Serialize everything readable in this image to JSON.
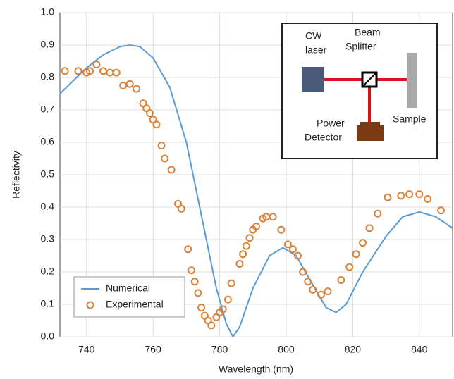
{
  "chart_data": {
    "type": "line",
    "xlabel": "Wavelength (nm)",
    "ylabel": "Reflectivity",
    "xlim": [
      732,
      850
    ],
    "ylim": [
      0,
      1
    ],
    "xticks": [
      740,
      760,
      780,
      800,
      820,
      840
    ],
    "yticks": [
      {
        "value": 0,
        "label": "0.0"
      },
      0.1,
      0.2,
      0.3,
      0.4,
      0.5,
      0.6,
      0.7,
      0.8,
      0.9,
      {
        "value": 1,
        "label": "1.0"
      }
    ],
    "grid": true,
    "legend": "lower left",
    "series": [
      {
        "name": "Numerical",
        "color": "#5b9bd5",
        "mode": "line",
        "x": [
          732,
          736,
          740,
          745,
          750,
          753,
          756,
          760,
          765,
          770,
          775,
          779,
          782,
          784,
          786,
          790,
          795,
          799,
          803,
          808,
          812,
          815,
          818,
          823,
          830,
          835,
          840,
          845,
          850
        ],
        "values": [
          0.75,
          0.79,
          0.83,
          0.87,
          0.895,
          0.9,
          0.895,
          0.86,
          0.77,
          0.6,
          0.35,
          0.15,
          0.04,
          0.0,
          0.03,
          0.15,
          0.25,
          0.275,
          0.25,
          0.16,
          0.09,
          0.075,
          0.1,
          0.2,
          0.31,
          0.37,
          0.385,
          0.37,
          0.335
        ]
      },
      {
        "name": "Experimental",
        "color": "#d9823b",
        "mode": "markers",
        "x": [
          733.5,
          737.5,
          740,
          741,
          743,
          745,
          747,
          749,
          751,
          753,
          755,
          757,
          758,
          759,
          760,
          761,
          762.5,
          763.5,
          765.5,
          767.5,
          768.5,
          770.5,
          771.5,
          772.5,
          773.5,
          774.5,
          775.5,
          776.5,
          777.5,
          779,
          780,
          781,
          782.5,
          783.5,
          786,
          787,
          788,
          789,
          790,
          791,
          793,
          794,
          796,
          798.5,
          800.5,
          802,
          803.5,
          805,
          806.5,
          808,
          810.5,
          812.5,
          816.5,
          819,
          821,
          823,
          825,
          827.5,
          830.5,
          834.5,
          837,
          840,
          842.5,
          846.5
        ],
        "values": [
          0.82,
          0.82,
          0.815,
          0.82,
          0.84,
          0.82,
          0.815,
          0.815,
          0.775,
          0.78,
          0.765,
          0.72,
          0.705,
          0.69,
          0.67,
          0.655,
          0.59,
          0.55,
          0.515,
          0.41,
          0.395,
          0.27,
          0.205,
          0.17,
          0.135,
          0.09,
          0.065,
          0.05,
          0.035,
          0.06,
          0.075,
          0.085,
          0.115,
          0.165,
          0.225,
          0.255,
          0.28,
          0.305,
          0.33,
          0.34,
          0.365,
          0.37,
          0.37,
          0.33,
          0.285,
          0.27,
          0.25,
          0.2,
          0.17,
          0.145,
          0.13,
          0.14,
          0.175,
          0.215,
          0.255,
          0.29,
          0.335,
          0.38,
          0.43,
          0.435,
          0.44,
          0.44,
          0.425,
          0.39
        ]
      }
    ],
    "inset": {
      "laser": [
        "CW",
        "laser"
      ],
      "splitter": [
        "Beam",
        "Splitter"
      ],
      "detector": [
        "Power",
        "Detector"
      ],
      "sample": [
        "Sample"
      ]
    }
  }
}
